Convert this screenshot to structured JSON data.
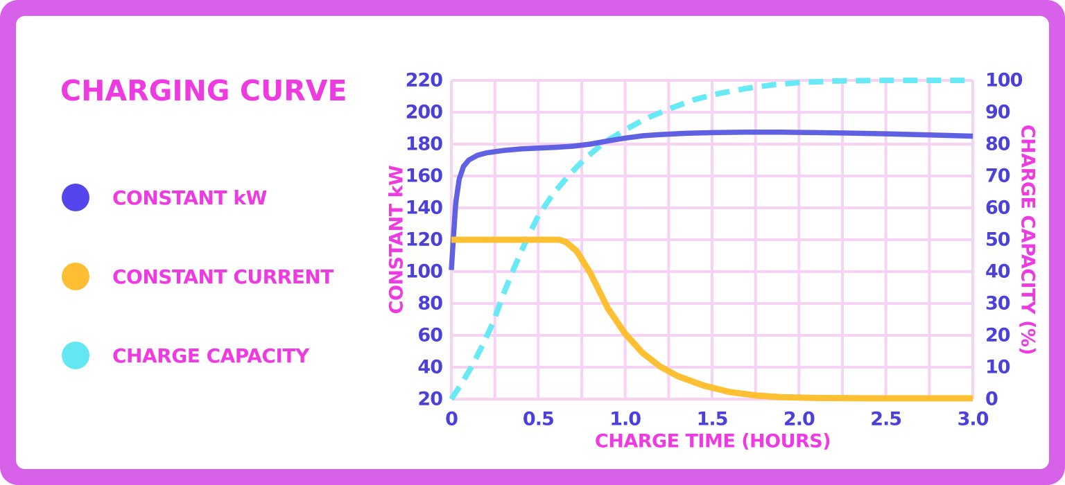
{
  "frame": {
    "border_color": "#d761e8",
    "panel_color": "#ffffff"
  },
  "title": "CHARGING CURVE",
  "colors": {
    "heading_magenta": "#ee3be1",
    "tick_indigo": "#4b40da",
    "grid_pink": "#f6d2f4"
  },
  "legend": {
    "items": [
      {
        "label": "CONSTANT kW",
        "color": "#5546ec"
      },
      {
        "label": "CONSTANT CURRENT",
        "color": "#fcbe33"
      },
      {
        "label": "CHARGE CAPACITY",
        "color": "#63e7f3"
      }
    ]
  },
  "chart_data": {
    "type": "line",
    "title": "CHARGING CURVE",
    "grid": {
      "on": true,
      "color": "#f6d2f4",
      "x_step_hours": 0.25,
      "y_step_left": 20
    },
    "x_axis": {
      "label": "CHARGE TIME (HOURS)",
      "range": [
        0,
        3
      ],
      "tick_labels": [
        "0",
        "0.5",
        "1.0",
        "1.5",
        "2.0",
        "2.5",
        "3.0"
      ]
    },
    "y_left_axis": {
      "label": "CONSTANT kW",
      "range": [
        20,
        220
      ],
      "tick_labels": [
        "220",
        "200",
        "180",
        "160",
        "140",
        "120",
        "100",
        "80",
        "60",
        "40",
        "20"
      ]
    },
    "y_right_axis": {
      "label": "CHARGE CAPACITY (%)",
      "range": [
        0,
        100
      ],
      "tick_labels": [
        "100",
        "90",
        "80",
        "70",
        "60",
        "50",
        "40",
        "30",
        "20",
        "10",
        "0"
      ]
    },
    "series": [
      {
        "name": "CHARGE CAPACITY",
        "axis": "right",
        "style": "dashed",
        "color": "#68e9f6",
        "width": 8,
        "points": [
          [
            0,
            0
          ],
          [
            0.06,
            5
          ],
          [
            0.12,
            10.5
          ],
          [
            0.18,
            17
          ],
          [
            0.24,
            24
          ],
          [
            0.3,
            33
          ],
          [
            0.36,
            41
          ],
          [
            0.42,
            48.5
          ],
          [
            0.5,
            57.5
          ],
          [
            0.58,
            64
          ],
          [
            0.68,
            70.5
          ],
          [
            0.78,
            76
          ],
          [
            0.88,
            80.5
          ],
          [
            1.0,
            84.5
          ],
          [
            1.12,
            88
          ],
          [
            1.25,
            91
          ],
          [
            1.4,
            94
          ],
          [
            1.55,
            96
          ],
          [
            1.7,
            97.5
          ],
          [
            1.85,
            98.6
          ],
          [
            2.0,
            99.3
          ],
          [
            2.2,
            99.8
          ],
          [
            2.5,
            100
          ],
          [
            2.75,
            100
          ],
          [
            3.0,
            100
          ]
        ]
      },
      {
        "name": "CONSTANT kW",
        "axis": "left",
        "style": "solid",
        "color": "#6060e2",
        "width": 7.5,
        "points": [
          [
            0,
            101
          ],
          [
            0.012,
            122
          ],
          [
            0.025,
            143
          ],
          [
            0.045,
            158
          ],
          [
            0.07,
            166
          ],
          [
            0.1,
            170
          ],
          [
            0.15,
            173
          ],
          [
            0.2,
            174.5
          ],
          [
            0.3,
            176
          ],
          [
            0.4,
            177
          ],
          [
            0.5,
            177.5
          ],
          [
            0.6,
            178
          ],
          [
            0.7,
            178.7
          ],
          [
            0.8,
            180
          ],
          [
            0.9,
            182
          ],
          [
            1.0,
            183.8
          ],
          [
            1.1,
            185.2
          ],
          [
            1.2,
            186
          ],
          [
            1.35,
            186.8
          ],
          [
            1.5,
            187.2
          ],
          [
            1.7,
            187.5
          ],
          [
            1.9,
            187.5
          ],
          [
            2.1,
            187.2
          ],
          [
            2.3,
            186.9
          ],
          [
            2.5,
            186.5
          ],
          [
            2.75,
            185.8
          ],
          [
            3.0,
            185
          ]
        ]
      },
      {
        "name": "CONSTANT CURRENT",
        "axis": "left",
        "style": "solid",
        "color": "#fcc032",
        "width": 9,
        "points": [
          [
            0,
            120
          ],
          [
            0.62,
            120
          ],
          [
            0.66,
            118.5
          ],
          [
            0.72,
            113
          ],
          [
            0.8,
            99
          ],
          [
            0.9,
            77
          ],
          [
            1.0,
            61
          ],
          [
            1.1,
            49
          ],
          [
            1.2,
            40.5
          ],
          [
            1.3,
            34.5
          ],
          [
            1.45,
            28.5
          ],
          [
            1.6,
            24.5
          ],
          [
            1.75,
            22.3
          ],
          [
            1.9,
            21.2
          ],
          [
            2.1,
            20.7
          ],
          [
            2.4,
            20.5
          ],
          [
            2.7,
            20.5
          ],
          [
            3.0,
            20.5
          ]
        ]
      }
    ]
  }
}
